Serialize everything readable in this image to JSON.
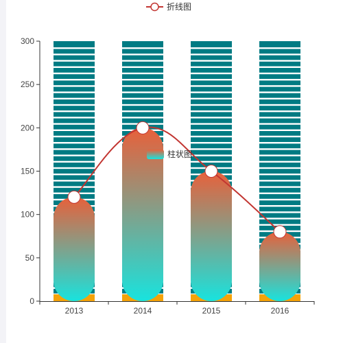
{
  "chart_data": {
    "type": "bar",
    "categories": [
      "2013",
      "2014",
      "2015",
      "2016"
    ],
    "ylim": [
      0,
      300
    ],
    "yticks": [
      0,
      50,
      100,
      150,
      200,
      250,
      300
    ],
    "background_bar_value": 300,
    "series": [
      {
        "name": "柱状图",
        "type": "bar",
        "values": [
          120,
          200,
          150,
          80
        ]
      },
      {
        "name": "折线图",
        "type": "line",
        "smooth": true,
        "values": [
          120,
          200,
          150,
          80
        ]
      }
    ],
    "legend_placement": "top-center",
    "grid": false
  },
  "colors": {
    "background_bar": "#007b83",
    "stripe": "#ffffff",
    "base_bar": "#f5a309",
    "gradient_top": "#e8603a",
    "gradient_bottom": "#18e3de",
    "line": "#c23531",
    "marker_fill": "#ffffff",
    "axis": "#333333"
  }
}
